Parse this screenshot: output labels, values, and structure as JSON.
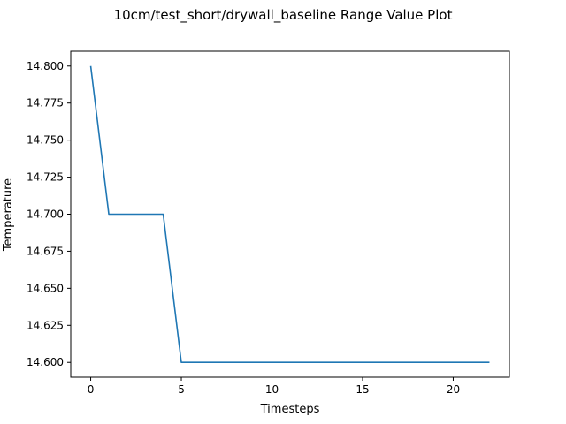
{
  "chart_data": {
    "type": "line",
    "title": "10cm/test_short/drywall_baseline Range Value Plot",
    "xlabel": "Timesteps",
    "ylabel": "Temperature",
    "xlim": [
      -1.1,
      23.1
    ],
    "ylim": [
      14.59,
      14.81
    ],
    "xticks": [
      0,
      5,
      10,
      15,
      20
    ],
    "xtick_labels": [
      "0",
      "5",
      "10",
      "15",
      "20"
    ],
    "yticks": [
      14.6,
      14.625,
      14.65,
      14.675,
      14.7,
      14.725,
      14.75,
      14.775,
      14.8
    ],
    "ytick_labels": [
      "14.600",
      "14.625",
      "14.650",
      "14.675",
      "14.700",
      "14.725",
      "14.750",
      "14.775",
      "14.800"
    ],
    "grid": false,
    "legend": "none",
    "series": [
      {
        "color": "#1f77b4",
        "x": [
          0,
          1,
          2,
          3,
          4,
          5,
          6,
          7,
          8,
          9,
          10,
          11,
          12,
          13,
          14,
          15,
          16,
          17,
          18,
          19,
          20,
          21,
          22
        ],
        "y": [
          14.8,
          14.7,
          14.7,
          14.7,
          14.7,
          14.6,
          14.6,
          14.6,
          14.6,
          14.6,
          14.6,
          14.6,
          14.6,
          14.6,
          14.6,
          14.6,
          14.6,
          14.6,
          14.6,
          14.6,
          14.6,
          14.6,
          14.6
        ]
      }
    ]
  }
}
